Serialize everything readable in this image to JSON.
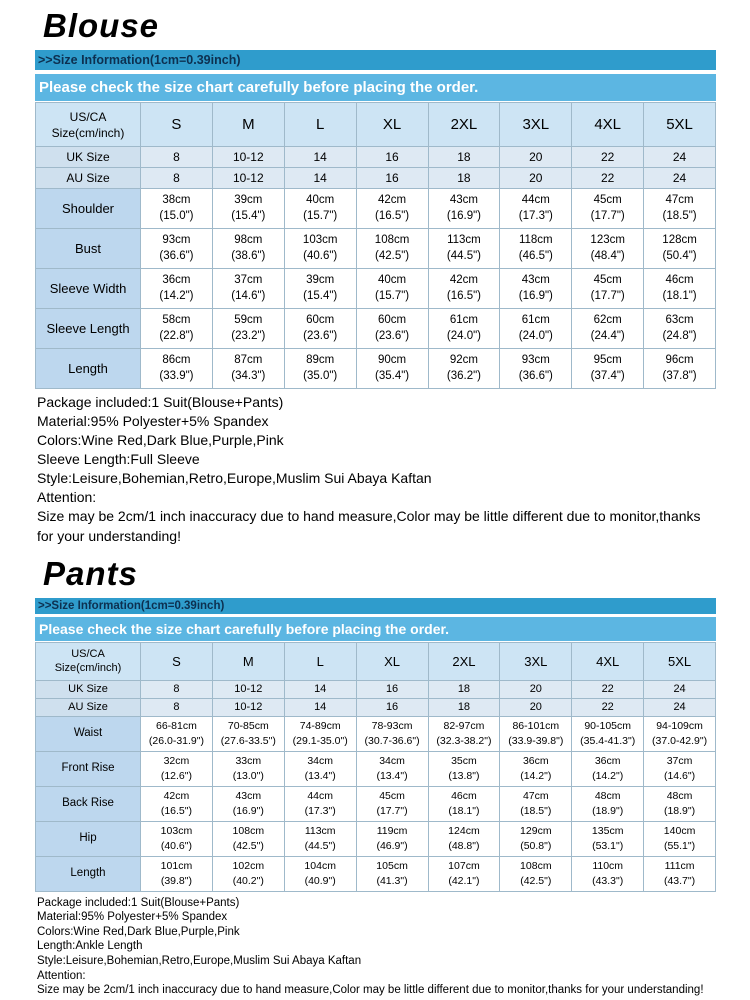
{
  "colors": {
    "bar1_bg": "#2f9ccc",
    "bar1_text": "#0d3050",
    "bar2_bg": "#5cb6e2",
    "bar2_text": "#ffffff",
    "head_bg": "#cde4f4",
    "region_label_bg": "#cfe0ee",
    "region_val_bg": "#dee9f3",
    "label_bg": "#bdd7ee",
    "border": "#9fb9ca"
  },
  "blouse": {
    "title": "Blouse",
    "size_info_header": ">>Size Information(1cm=0.39inch)",
    "check_note": "Please check the size chart carefully before placing the order.",
    "table": {
      "corner_label": "US/CA\nSize(cm/inch)",
      "sizes": [
        "S",
        "M",
        "L",
        "XL",
        "2XL",
        "3XL",
        "4XL",
        "5XL"
      ],
      "size_rows": [
        {
          "label": "UK Size",
          "values": [
            "8",
            "10-12",
            "14",
            "16",
            "18",
            "20",
            "22",
            "24"
          ]
        },
        {
          "label": "AU Size",
          "values": [
            "8",
            "10-12",
            "14",
            "16",
            "18",
            "20",
            "22",
            "24"
          ]
        }
      ],
      "measure_rows": [
        {
          "label": "Shoulder",
          "values": [
            "38cm\n(15.0\")",
            "39cm\n(15.4\")",
            "40cm\n(15.7\")",
            "42cm\n(16.5\")",
            "43cm\n(16.9\")",
            "44cm\n(17.3\")",
            "45cm\n(17.7\")",
            "47cm\n(18.5\")"
          ]
        },
        {
          "label": "Bust",
          "values": [
            "93cm\n(36.6\")",
            "98cm\n(38.6\")",
            "103cm\n(40.6\")",
            "108cm\n(42.5\")",
            "113cm\n(44.5\")",
            "118cm\n(46.5\")",
            "123cm\n(48.4\")",
            "128cm\n(50.4\")"
          ]
        },
        {
          "label": "Sleeve Width",
          "values": [
            "36cm\n(14.2\")",
            "37cm\n(14.6\")",
            "39cm\n(15.4\")",
            "40cm\n(15.7\")",
            "42cm\n(16.5\")",
            "43cm\n(16.9\")",
            "45cm\n(17.7\")",
            "46cm\n(18.1\")"
          ]
        },
        {
          "label": "Sleeve Length",
          "values": [
            "58cm\n(22.8\")",
            "59cm\n(23.2\")",
            "60cm\n(23.6\")",
            "60cm\n(23.6\")",
            "61cm\n(24.0\")",
            "61cm\n(24.0\")",
            "62cm\n(24.4\")",
            "63cm\n(24.8\")"
          ]
        },
        {
          "label": "Length",
          "values": [
            "86cm\n(33.9\")",
            "87cm\n(34.3\")",
            "89cm\n(35.0\")",
            "90cm\n(35.4\")",
            "92cm\n(36.2\")",
            "93cm\n(36.6\")",
            "95cm\n(37.4\")",
            "96cm\n(37.8\")"
          ]
        }
      ]
    },
    "details": [
      "Package included:1 Suit(Blouse+Pants)",
      "Material:95% Polyester+5% Spandex",
      "Colors:Wine Red,Dark Blue,Purple,Pink",
      "Sleeve Length:Full Sleeve",
      "Style:Leisure,Bohemian,Retro,Europe,Muslim Sui Abaya Kaftan",
      "Attention:",
      "Size may be 2cm/1 inch inaccuracy due to hand measure,Color may be little different due to monitor,thanks for your understanding!"
    ]
  },
  "pants": {
    "title": "Pants",
    "size_info_header": ">>Size Information(1cm=0.39inch)",
    "check_note": "Please check the size chart carefully before placing the order.",
    "table": {
      "corner_label": "US/CA\nSize(cm/inch)",
      "sizes": [
        "S",
        "M",
        "L",
        "XL",
        "2XL",
        "3XL",
        "4XL",
        "5XL"
      ],
      "size_rows": [
        {
          "label": "UK Size",
          "values": [
            "8",
            "10-12",
            "14",
            "16",
            "18",
            "20",
            "22",
            "24"
          ]
        },
        {
          "label": "AU Size",
          "values": [
            "8",
            "10-12",
            "14",
            "16",
            "18",
            "20",
            "22",
            "24"
          ]
        }
      ],
      "measure_rows": [
        {
          "label": "Waist",
          "values": [
            "66-81cm\n(26.0-31.9\")",
            "70-85cm\n(27.6-33.5\")",
            "74-89cm\n(29.1-35.0\")",
            "78-93cm\n(30.7-36.6\")",
            "82-97cm\n(32.3-38.2\")",
            "86-101cm\n(33.9-39.8\")",
            "90-105cm\n(35.4-41.3\")",
            "94-109cm\n(37.0-42.9\")"
          ]
        },
        {
          "label": "Front Rise",
          "values": [
            "32cm\n(12.6\")",
            "33cm\n(13.0\")",
            "34cm\n(13.4\")",
            "34cm\n(13.4\")",
            "35cm\n(13.8\")",
            "36cm\n(14.2\")",
            "36cm\n(14.2\")",
            "37cm\n(14.6\")"
          ]
        },
        {
          "label": "Back Rise",
          "values": [
            "42cm\n(16.5\")",
            "43cm\n(16.9\")",
            "44cm\n(17.3\")",
            "45cm\n(17.7\")",
            "46cm\n(18.1\")",
            "47cm\n(18.5\")",
            "48cm\n(18.9\")",
            "48cm\n(18.9\")"
          ]
        },
        {
          "label": "Hip",
          "values": [
            "103cm\n(40.6\")",
            "108cm\n(42.5\")",
            "113cm\n(44.5\")",
            "119cm\n(46.9\")",
            "124cm\n(48.8\")",
            "129cm\n(50.8\")",
            "135cm\n(53.1\")",
            "140cm\n(55.1\")"
          ]
        },
        {
          "label": "Length",
          "values": [
            "101cm\n(39.8\")",
            "102cm\n(40.2\")",
            "104cm\n(40.9\")",
            "105cm\n(41.3\")",
            "107cm\n(42.1\")",
            "108cm\n(42.5\")",
            "110cm\n(43.3\")",
            "111cm\n(43.7\")"
          ]
        }
      ]
    },
    "details": [
      "Package included:1 Suit(Blouse+Pants)",
      "Material:95% Polyester+5% Spandex",
      "Colors:Wine Red,Dark Blue,Purple,Pink",
      "Length:Ankle Length",
      "Style:Leisure,Bohemian,Retro,Europe,Muslim Sui Abaya Kaftan",
      "Attention:",
      "Size may be 2cm/1 inch inaccuracy due to hand measure,Color may be little different due to monitor,thanks for your understanding!"
    ]
  }
}
